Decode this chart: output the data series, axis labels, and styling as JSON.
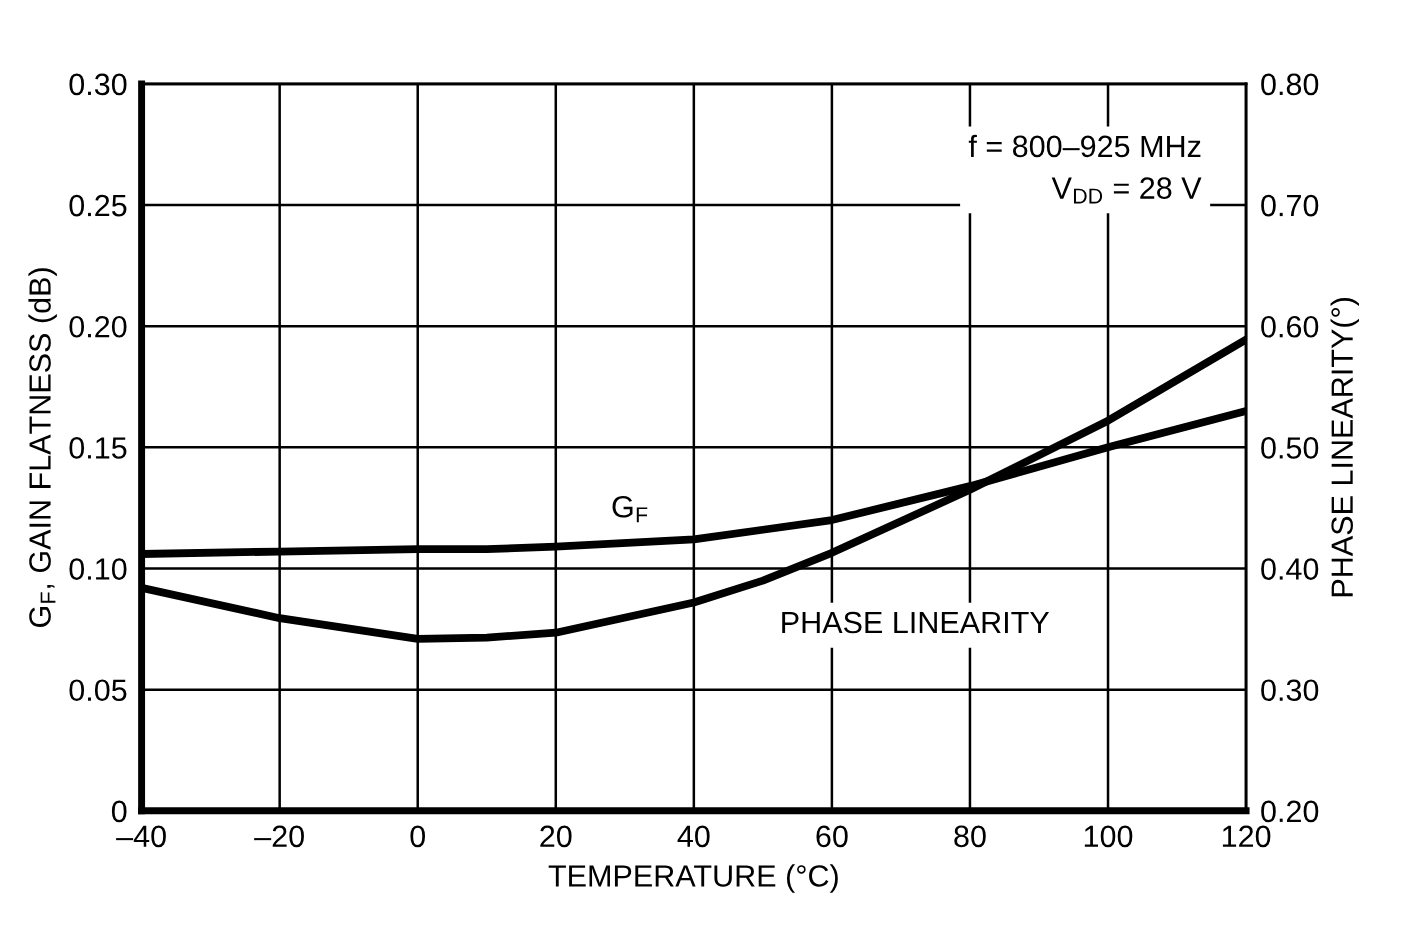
{
  "chart_data": {
    "type": "line",
    "xlabel": "TEMPERATURE (°C)",
    "ylabel": "G$_{F}$, GAIN FLATNESS (dB)",
    "y2label": "PHASE LINEARITY(°)",
    "x": [
      -40,
      -20,
      0,
      10,
      20,
      40,
      50,
      60,
      80,
      100,
      120
    ],
    "series": [
      {
        "color": "#000000",
        "values": [
          0.106,
          0.107,
          0.108,
          0.108,
          0.109,
          0.112,
          0.116,
          0.12,
          0.134,
          0.15,
          0.165
        ]
      },
      {
        "color": "#000000",
        "axis": "y2",
        "values": [
          0.384,
          0.359,
          0.342,
          0.343,
          0.347,
          0.372,
          0.39,
          0.413,
          0.465,
          0.522,
          0.589
        ]
      }
    ],
    "xlim": [
      -40,
      120
    ],
    "xticks": [
      {
        "value": -40,
        "label": "–40"
      },
      {
        "value": -20,
        "label": "–20"
      },
      0,
      20,
      40,
      60,
      80,
      100,
      120
    ],
    "ylim": [
      0,
      0.3
    ],
    "yticks": [
      0,
      0.05,
      {
        "value": 0.1,
        "label": "0.10"
      },
      0.15,
      {
        "value": 0.2,
        "label": "0.20"
      },
      0.25,
      {
        "value": 0.3,
        "label": "0.30"
      }
    ],
    "y2lim": [
      0.2,
      0.8
    ],
    "y2ticks": [
      {
        "value": 0.2,
        "label": "0.20"
      },
      {
        "value": 0.3,
        "label": "0.30"
      },
      {
        "value": 0.4,
        "label": "0.40"
      },
      {
        "value": 0.5,
        "label": "0.50"
      },
      {
        "value": 0.6,
        "label": "0.60"
      },
      {
        "value": 0.7,
        "label": "0.70"
      },
      {
        "value": 0.8,
        "label": "0.80"
      }
    ],
    "grid": true,
    "line_style": "solid",
    "marker": "none",
    "annotations": [
      "G$_{F}$",
      "PHASE LINEARITY",
      "f = 800–925 MHz\nV$_{DD}$ = 28 V"
    ]
  }
}
